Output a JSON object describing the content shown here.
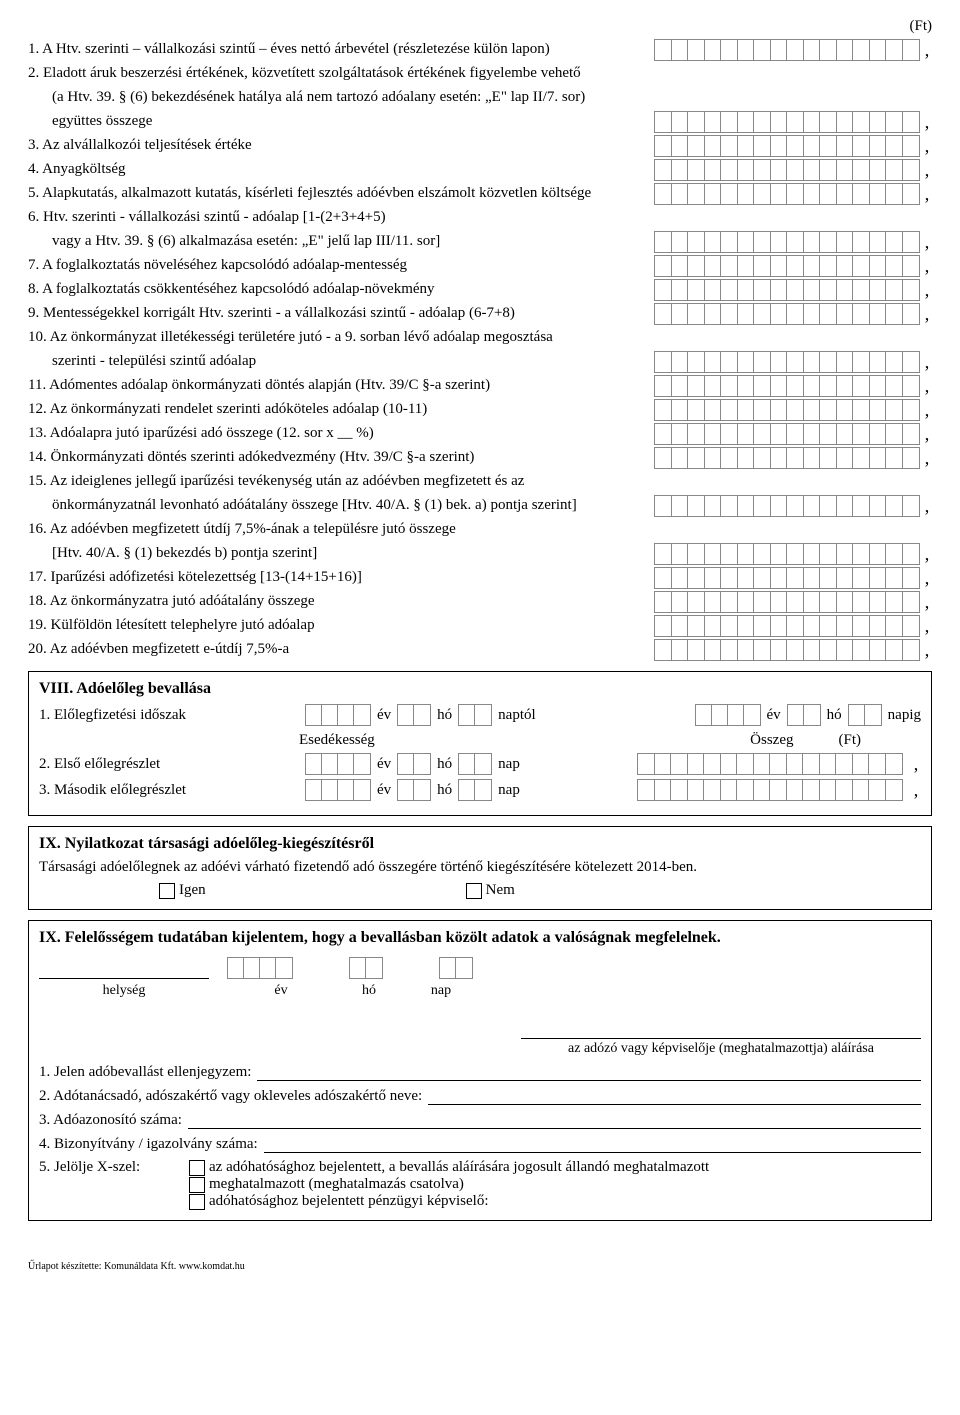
{
  "currency_label": "(Ft)",
  "main_cells": 16,
  "items": [
    {
      "n": "1.",
      "text": "A Htv. szerinti – vállalkozási szintű – éves nettó árbevétel (részletezése külön lapon)",
      "box": true
    },
    {
      "n": "2.",
      "text": "Eladott áruk beszerzési értékének, közvetített szolgáltatások értékének figyelembe vehető",
      "box": false
    },
    {
      "n": "",
      "text": "(a Htv. 39. § (6) bekezdésének hatálya alá nem tartozó adóalany esetén: „E\" lap II/7. sor)",
      "box": false,
      "indent": true
    },
    {
      "n": "",
      "text": "együttes összege",
      "box": true,
      "indent": true
    },
    {
      "n": "3.",
      "text": "Az alvállalkozói teljesítések értéke",
      "box": true
    },
    {
      "n": "4.",
      "text": "Anyagköltség",
      "box": true
    },
    {
      "n": "5.",
      "text": "Alapkutatás, alkalmazott kutatás, kísérleti fejlesztés adóévben elszámolt közvetlen költsége",
      "box": true
    },
    {
      "n": "6.",
      "text": "Htv. szerinti - vállalkozási szintű - adóalap [1-(2+3+4+5)",
      "box": false
    },
    {
      "n": "",
      "text": "vagy a Htv. 39. § (6) alkalmazása esetén: „E\" jelű lap III/11. sor]",
      "box": true,
      "indent": true
    },
    {
      "n": "7.",
      "text": "A foglalkoztatás növeléséhez kapcsolódó adóalap-mentesség",
      "box": true
    },
    {
      "n": "8.",
      "text": "A foglalkoztatás csökkentéséhez kapcsolódó adóalap-növekmény",
      "box": true
    },
    {
      "n": "9.",
      "text": "Mentességekkel korrigált Htv. szerinti - a vállalkozási szintű - adóalap (6-7+8)",
      "box": true
    },
    {
      "n": "10.",
      "text": "Az önkormányzat illetékességi területére jutó - a 9. sorban lévő adóalap megosztása",
      "box": false
    },
    {
      "n": "",
      "text": "szerinti - települési szintű adóalap",
      "box": true,
      "indent": true
    },
    {
      "n": "11.",
      "text": "Adómentes adóalap önkormányzati döntés alapján (Htv. 39/C §-a szerint)",
      "box": true
    },
    {
      "n": "12.",
      "text": "Az önkormányzati rendelet szerinti adóköteles adóalap (10-11)",
      "box": true
    },
    {
      "n": "13.",
      "text": "Adóalapra jutó iparűzési adó összege (12. sor x __ %)",
      "box": true
    },
    {
      "n": "14.",
      "text": "Önkormányzati döntés szerinti adókedvezmény (Htv. 39/C §-a szerint)",
      "box": true
    },
    {
      "n": "15.",
      "text": "Az ideiglenes jellegű iparűzési tevékenység után az adóévben megfizetett és az",
      "box": false
    },
    {
      "n": "",
      "text": "önkormányzatnál levonható adóátalány összege [Htv. 40/A. § (1) bek. a) pontja szerint]",
      "box": true,
      "indent": true
    },
    {
      "n": "16.",
      "text": "Az adóévben megfizetett útdíj 7,5%-ának a településre jutó összege",
      "box": false
    },
    {
      "n": "",
      "text": "[Htv. 40/A. § (1) bekezdés b) pontja szerint]",
      "box": true,
      "indent": true
    },
    {
      "n": "17.",
      "text": "Iparűzési adófizetési kötelezettség [13-(14+15+16)]",
      "box": true
    },
    {
      "n": "18.",
      "text": "Az önkormányzatra jutó adóátalány összege",
      "box": true
    },
    {
      "n": "19.",
      "text": "Külföldön létesített telephelyre jutó adóalap",
      "box": true
    },
    {
      "n": "20.",
      "text": "Az adóévben megfizetett e-útdíj 7,5%-a",
      "box": true
    }
  ],
  "viii": {
    "title": "VIII. Adóelőleg bevallása",
    "r1_label": "1. Előlegfizetési időszak",
    "ev": "év",
    "ho": "hó",
    "nap": "nap",
    "naptol": "naptól",
    "napig": "napig",
    "esedekesseg": "Esedékesség",
    "osszeg": "Összeg",
    "ft": "(Ft)",
    "r2_label": "2. Első előlegrészlet",
    "r3_label": "3. Második előlegrészlet"
  },
  "ix1": {
    "title": "IX. Nyilatkozat társasági adóelőleg-kiegészítésről",
    "text": "Társasági adóelőlegnek az adóévi várható fizetendő adó összegére történő kiegészítésére kötelezett 2014-ben.",
    "igen": "Igen",
    "nem": "Nem"
  },
  "ix2": {
    "title": "IX. Felelősségem tudatában kijelentem, hogy a bevallásban közölt adatok a valóságnak megfelelnek.",
    "helyseg": "helység",
    "ev": "év",
    "ho": "hó",
    "nap": "nap",
    "sig": "az adózó vagy képviselője (meghatalmazottja) aláírása",
    "l1": "1. Jelen adóbevallást ellenjegyzem:",
    "l2": "2. Adótanácsadó, adószakértő vagy okleveles adószakértő neve:",
    "l3": "3. Adóazonosító száma:",
    "l4": "4. Bizonyítvány / igazolvány száma:",
    "l5": "5. Jelölje X-szel:",
    "opt1": "az adóhatósághoz bejelentett, a bevallás aláírására jogosult állandó meghatalmazott",
    "opt2": "meghatalmazott (meghatalmazás csatolva)",
    "opt3": "adóhatósághoz bejelentett pénzügyi képviselő:"
  },
  "footer": "Űrlapot készítette: Komunáldata Kft. www.komdat.hu"
}
